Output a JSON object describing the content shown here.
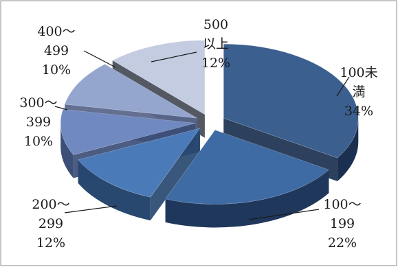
{
  "chart_data": {
    "type": "pie",
    "style": "exploded-3d",
    "categories": [
      "100未満",
      "100～199",
      "200～299",
      "300～399",
      "400～499",
      "500以上"
    ],
    "values": [
      34,
      22,
      12,
      10,
      10,
      12
    ],
    "unit": "%",
    "slice_labels": [
      [
        "100未",
        "満",
        "34%"
      ],
      [
        "100～",
        "199",
        "22%"
      ],
      [
        "200～",
        "299",
        "12%"
      ],
      [
        "300～",
        "399",
        "10%"
      ],
      [
        "400～",
        "499",
        "10%"
      ],
      [
        "500",
        "以上",
        "12%"
      ]
    ],
    "colors": [
      "#3B5F8E",
      "#3E6BA3",
      "#4A7AB8",
      "#7089C0",
      "#95A6CE",
      "#C3CCE0"
    ],
    "side_colors": [
      "#1B3050",
      "#20375C",
      "#284870",
      "#3D4E78",
      "#566488",
      "#454A55"
    ],
    "legend": "none"
  }
}
